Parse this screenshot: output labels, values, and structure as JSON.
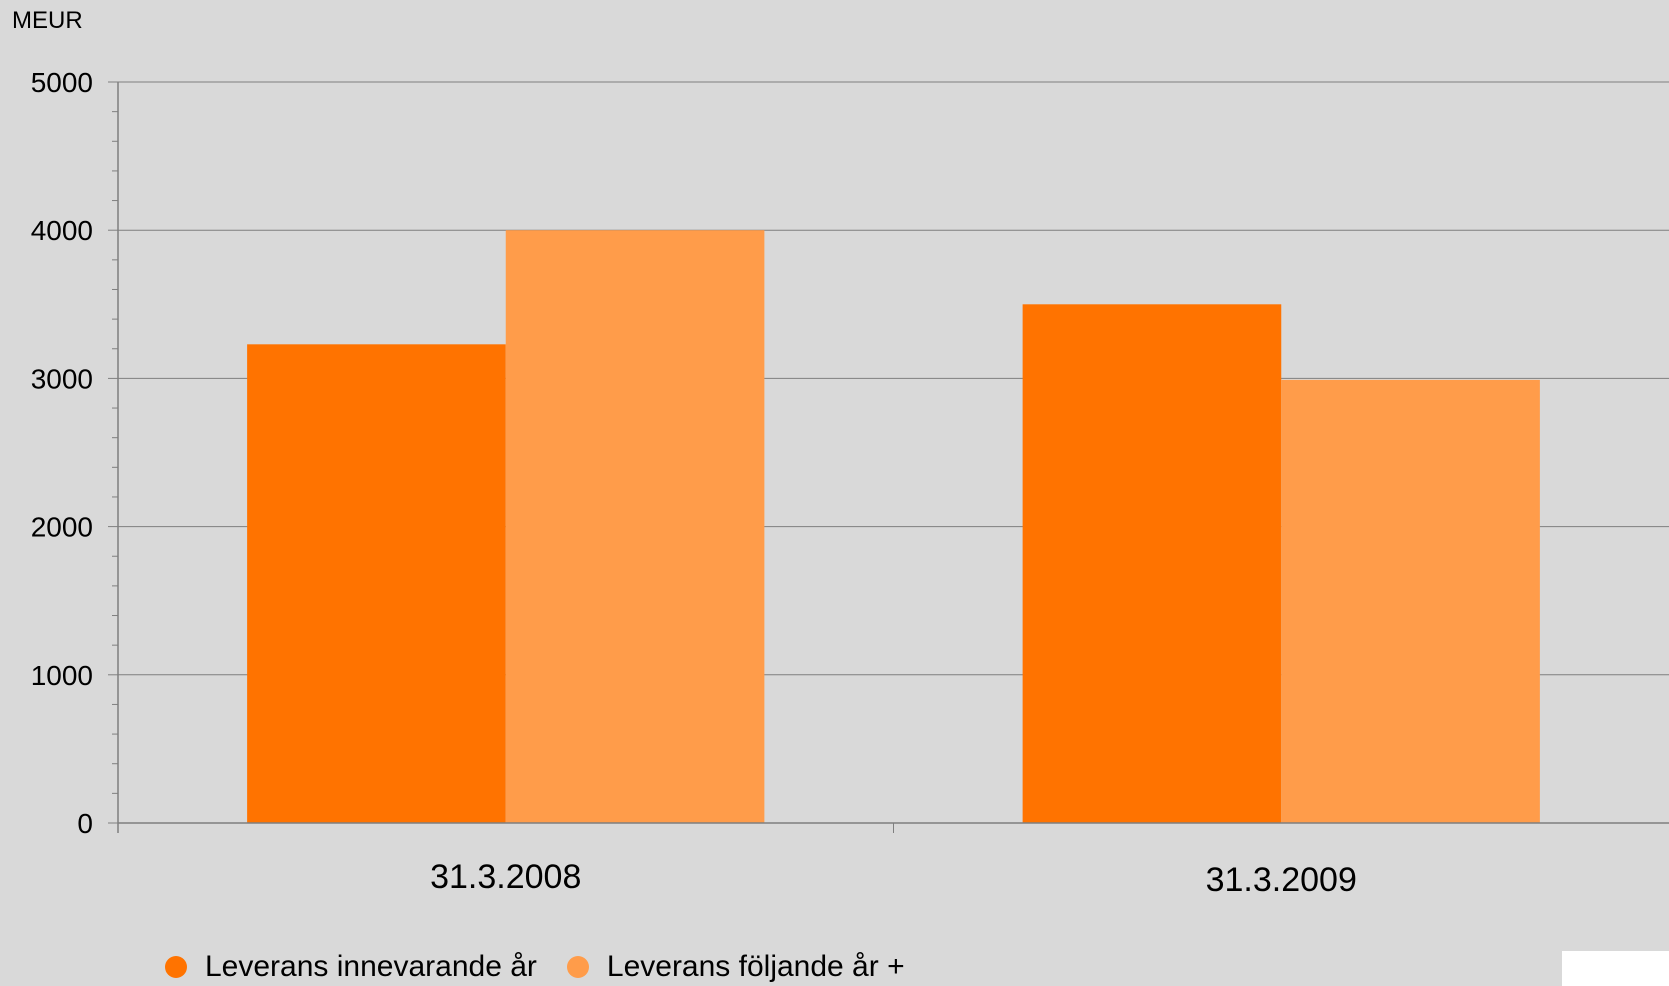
{
  "chart_data": {
    "type": "bar",
    "ylabel": "MEUR",
    "ylim": [
      0,
      5000
    ],
    "yticks": [
      0,
      1000,
      2000,
      3000,
      4000,
      5000
    ],
    "categories": [
      "31.3.2008",
      "31.3.2009"
    ],
    "series": [
      {
        "name": "Leverans innevarande år",
        "values": [
          3230,
          3500
        ],
        "color": "#ff7300"
      },
      {
        "name": "Leverans följande år +",
        "values": [
          4000,
          2990
        ],
        "color": "#ff9c4a"
      }
    ],
    "grid": true,
    "legend_position": "bottom-left"
  }
}
